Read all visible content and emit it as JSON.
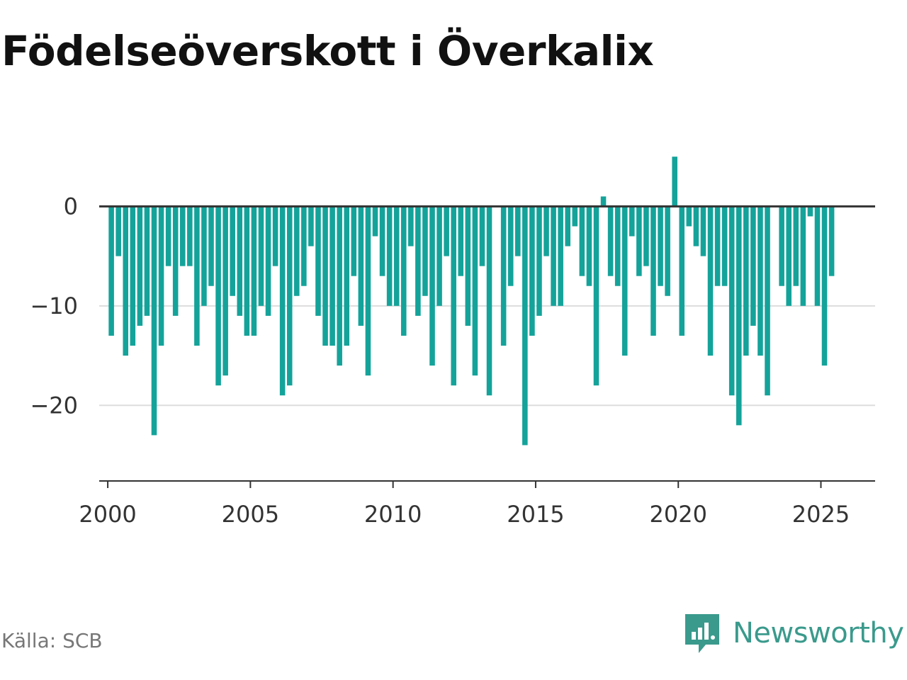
{
  "title": "Födelseöverskott i Överkalix",
  "source": "Källa: SCB",
  "brand": {
    "name": "Newsworthy",
    "icon": "newsworthy-logo-icon",
    "color": "#3a9a8c"
  },
  "chart_data": {
    "type": "bar",
    "bar_color": "#14a39a",
    "xlim": [
      1999.7,
      2026.9
    ],
    "ylim": [
      -27.6,
      9
    ],
    "yticks": [
      0,
      -10,
      -20
    ],
    "ytick_labels": [
      "0",
      "−10",
      "−20"
    ],
    "xticks": [
      2000,
      2005,
      2010,
      2015,
      2020,
      2025
    ],
    "xtick_labels": [
      "2000",
      "2005",
      "2010",
      "2015",
      "2020",
      "2025"
    ],
    "grid": true,
    "legend": "none",
    "x": [
      2000.125,
      2000.375,
      2000.625,
      2000.875,
      2001.125,
      2001.375,
      2001.625,
      2001.875,
      2002.125,
      2002.375,
      2002.625,
      2002.875,
      2003.125,
      2003.375,
      2003.625,
      2003.875,
      2004.125,
      2004.375,
      2004.625,
      2004.875,
      2005.125,
      2005.375,
      2005.625,
      2005.875,
      2006.125,
      2006.375,
      2006.625,
      2006.875,
      2007.125,
      2007.375,
      2007.625,
      2007.875,
      2008.125,
      2008.375,
      2008.625,
      2008.875,
      2009.125,
      2009.375,
      2009.625,
      2009.875,
      2010.125,
      2010.375,
      2010.625,
      2010.875,
      2011.125,
      2011.375,
      2011.625,
      2011.875,
      2012.125,
      2012.375,
      2012.625,
      2012.875,
      2013.125,
      2013.375,
      2013.625,
      2013.875,
      2014.125,
      2014.375,
      2014.625,
      2014.875,
      2015.125,
      2015.375,
      2015.625,
      2015.875,
      2016.125,
      2016.375,
      2016.625,
      2016.875,
      2017.125,
      2017.375,
      2017.625,
      2017.875,
      2018.125,
      2018.375,
      2018.625,
      2018.875,
      2019.125,
      2019.375,
      2019.625,
      2019.875,
      2020.125,
      2020.375,
      2020.625,
      2020.875,
      2021.125,
      2021.375,
      2021.625,
      2021.875,
      2022.125,
      2022.375,
      2022.625,
      2022.875,
      2023.125,
      2023.375,
      2023.625,
      2023.875,
      2024.125,
      2024.375,
      2024.625,
      2024.875,
      2025.125,
      2025.375
    ],
    "values": [
      -13,
      -5,
      -15,
      -14,
      -12,
      -11,
      -23,
      -14,
      -6,
      -11,
      -6,
      -6,
      -14,
      -10,
      -8,
      -18,
      -17,
      -9,
      -11,
      -13,
      -13,
      -10,
      -11,
      -6,
      -19,
      -18,
      -9,
      -8,
      -4,
      -11,
      -14,
      -14,
      -16,
      -14,
      -7,
      -12,
      -17,
      -3,
      -7,
      -10,
      -10,
      -13,
      -4,
      -11,
      -9,
      -16,
      -10,
      -5,
      -18,
      -7,
      -12,
      -17,
      -6,
      -19,
      0,
      -14,
      -8,
      -5,
      -24,
      -13,
      -11,
      -5,
      -10,
      -10,
      -4,
      -2,
      -7,
      -8,
      -18,
      1,
      -7,
      -8,
      -15,
      -3,
      -7,
      -6,
      -13,
      -8,
      -9,
      5,
      -13,
      -2,
      -4,
      -5,
      -15,
      -8,
      -8,
      -19,
      -22,
      -15,
      -12,
      -15,
      -19,
      0,
      -8,
      -10,
      -8,
      -10,
      -1,
      -10,
      -16,
      -7
    ]
  }
}
